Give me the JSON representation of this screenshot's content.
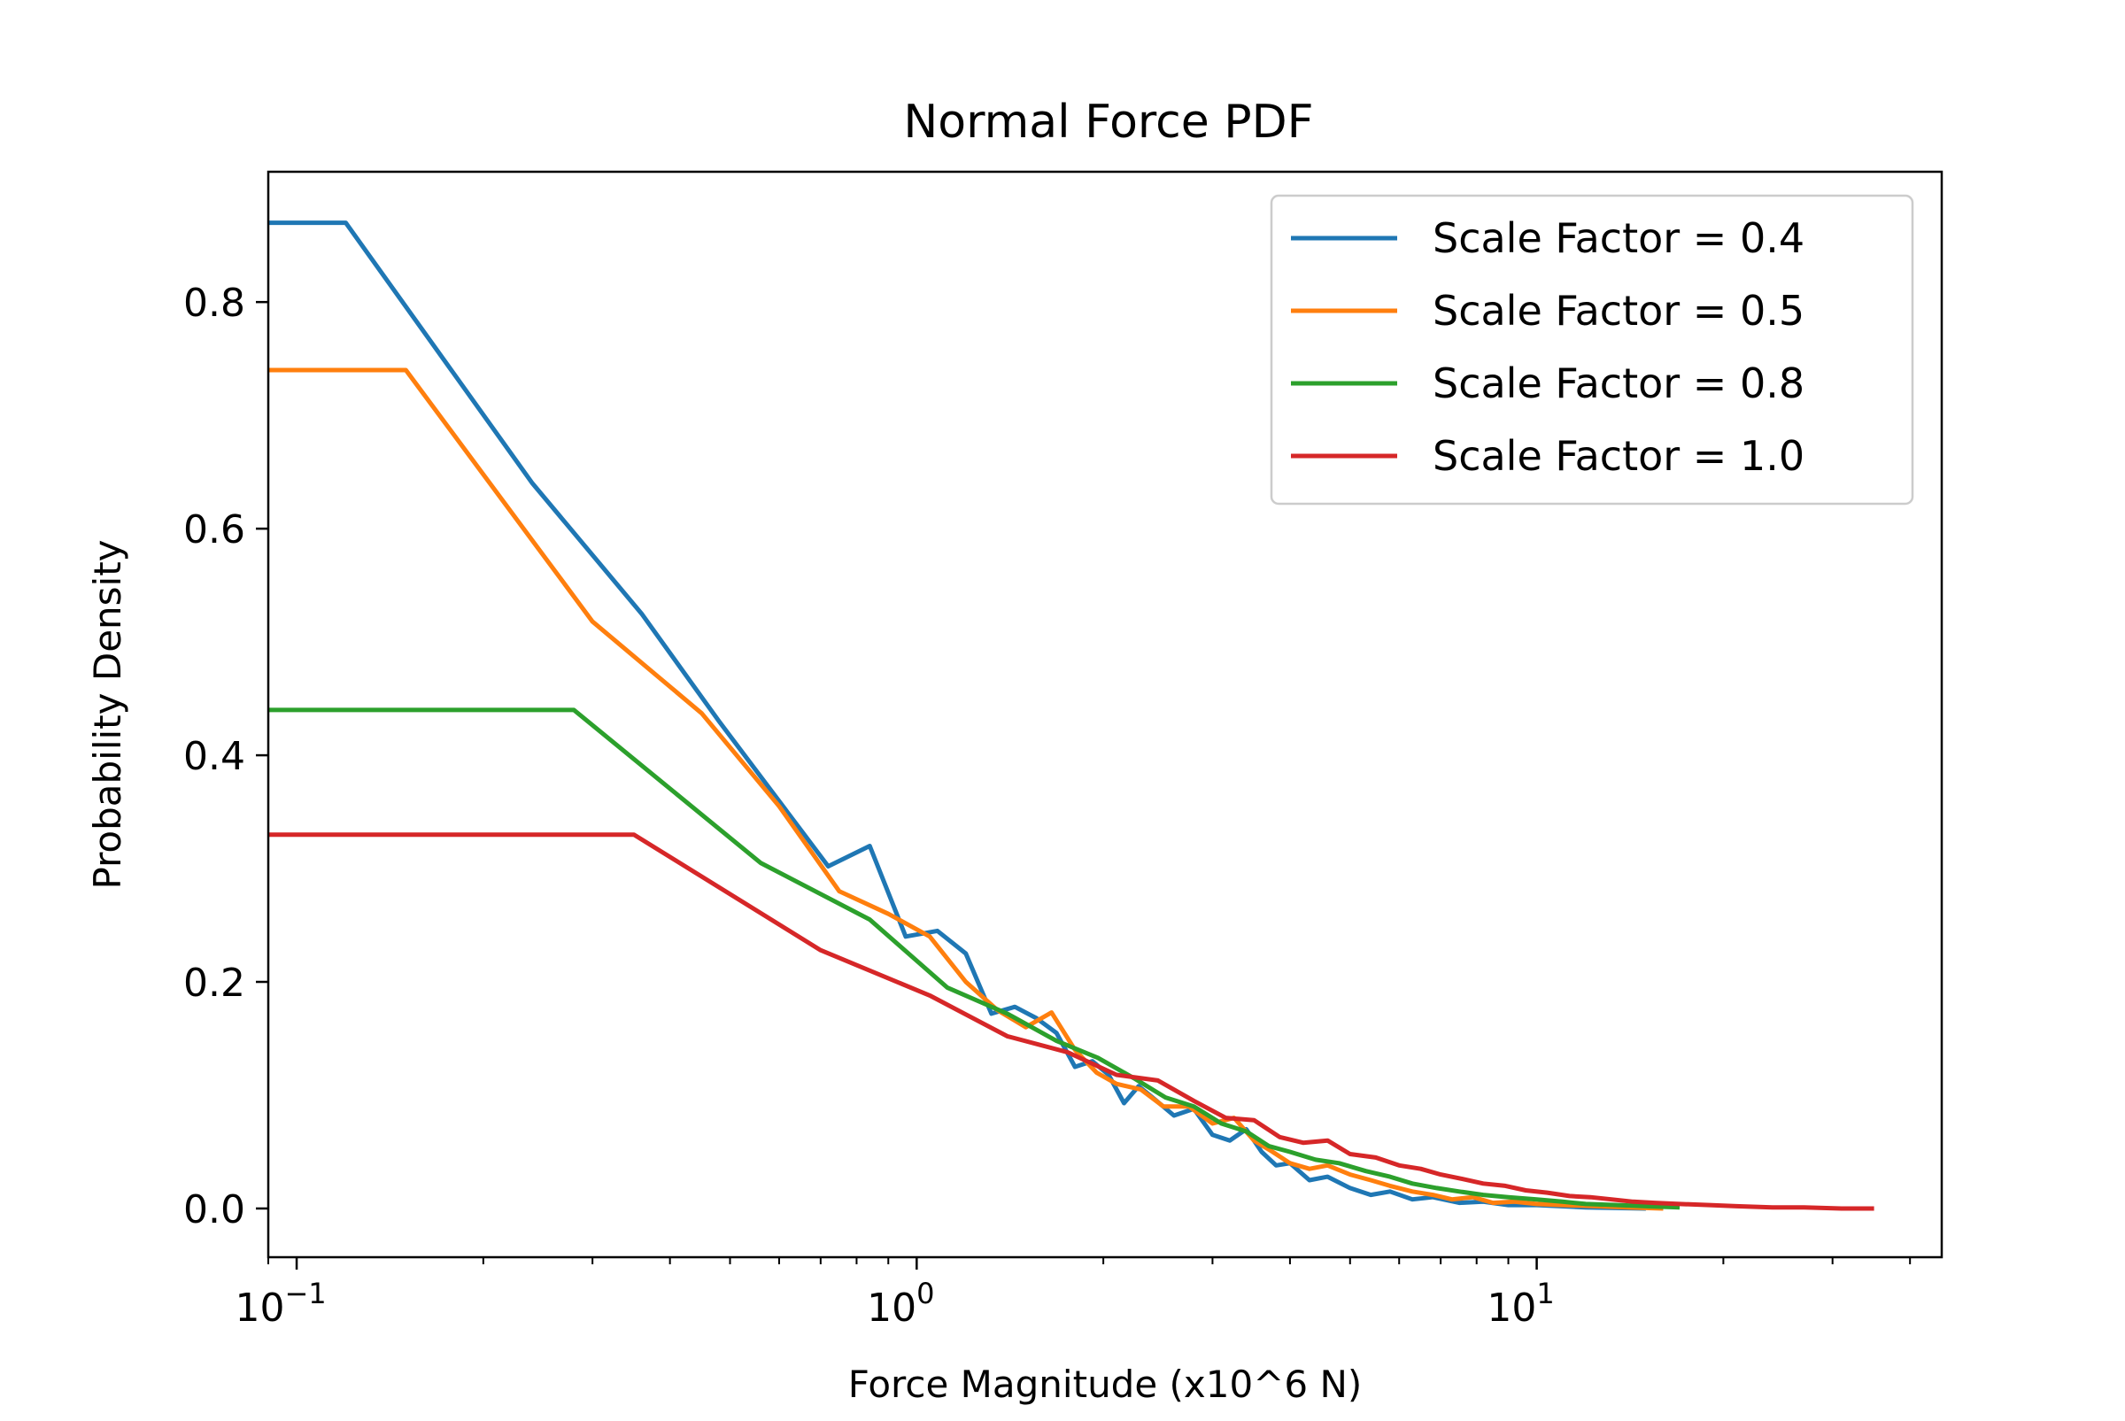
{
  "chart_data": {
    "type": "line",
    "title": "Normal Force PDF",
    "xlabel": "Force Magnitude (x10^6 N)",
    "ylabel": "Probability Density",
    "x_scale": "log",
    "xlim": [
      0.09,
      45
    ],
    "ylim": [
      -0.043,
      0.915
    ],
    "x_ticks": [
      {
        "value": 0.1,
        "base": "10",
        "exp": "−1"
      },
      {
        "value": 1,
        "base": "10",
        "exp": "0"
      },
      {
        "value": 10,
        "base": "10",
        "exp": "1"
      }
    ],
    "y_ticks": [
      {
        "value": 0.0,
        "label": "0.0"
      },
      {
        "value": 0.2,
        "label": "0.2"
      },
      {
        "value": 0.4,
        "label": "0.4"
      },
      {
        "value": 0.6,
        "label": "0.6"
      },
      {
        "value": 0.8,
        "label": "0.8"
      }
    ],
    "grid": false,
    "legend_position": "top-right",
    "series": [
      {
        "name": "Scale Factor = 0.4",
        "color": "#1f77b4",
        "x": [
          0.09,
          0.12,
          0.24,
          0.36,
          0.48,
          0.72,
          0.84,
          0.96,
          1.08,
          1.2,
          1.32,
          1.44,
          1.56,
          1.68,
          1.8,
          1.92,
          2.04,
          2.16,
          2.28,
          2.4,
          2.6,
          2.8,
          3.0,
          3.2,
          3.4,
          3.6,
          3.8,
          4.0,
          4.3,
          4.6,
          5.0,
          5.4,
          5.8,
          6.3,
          6.8,
          7.5,
          8.2,
          9.0,
          10.0,
          12.0,
          15.0
        ],
        "y": [
          0.87,
          0.87,
          0.64,
          0.525,
          0.43,
          0.302,
          0.32,
          0.24,
          0.245,
          0.225,
          0.172,
          0.178,
          0.168,
          0.155,
          0.125,
          0.13,
          0.118,
          0.093,
          0.108,
          0.098,
          0.082,
          0.088,
          0.065,
          0.06,
          0.07,
          0.05,
          0.038,
          0.04,
          0.025,
          0.028,
          0.018,
          0.012,
          0.015,
          0.008,
          0.01,
          0.005,
          0.006,
          0.003,
          0.003,
          0.001,
          0.0
        ]
      },
      {
        "name": "Scale Factor = 0.5",
        "color": "#ff7f0e",
        "x": [
          0.09,
          0.15,
          0.3,
          0.45,
          0.6,
          0.75,
          0.9,
          1.05,
          1.2,
          1.35,
          1.5,
          1.65,
          1.8,
          1.95,
          2.1,
          2.3,
          2.5,
          2.75,
          3.0,
          3.25,
          3.5,
          3.75,
          4.0,
          4.3,
          4.6,
          5.0,
          5.4,
          5.8,
          6.3,
          6.8,
          7.3,
          7.9,
          8.5,
          9.2,
          10.0,
          11.0,
          12.5,
          14.0,
          16.0
        ],
        "y": [
          0.74,
          0.74,
          0.518,
          0.437,
          0.355,
          0.28,
          0.26,
          0.24,
          0.2,
          0.175,
          0.16,
          0.173,
          0.14,
          0.12,
          0.11,
          0.105,
          0.09,
          0.09,
          0.075,
          0.08,
          0.06,
          0.05,
          0.04,
          0.035,
          0.038,
          0.03,
          0.025,
          0.02,
          0.015,
          0.012,
          0.008,
          0.01,
          0.005,
          0.006,
          0.004,
          0.003,
          0.002,
          0.001,
          0.0
        ]
      },
      {
        "name": "Scale Factor = 0.8",
        "color": "#2ca02c",
        "x": [
          0.09,
          0.28,
          0.56,
          0.84,
          1.12,
          1.4,
          1.68,
          1.96,
          2.24,
          2.52,
          2.8,
          3.1,
          3.4,
          3.7,
          4.0,
          4.4,
          4.8,
          5.3,
          5.8,
          6.3,
          6.9,
          7.5,
          8.2,
          9.0,
          10.0,
          11.0,
          12.0,
          13.5,
          15.0,
          17.0
        ],
        "y": [
          0.44,
          0.44,
          0.305,
          0.255,
          0.195,
          0.172,
          0.148,
          0.133,
          0.115,
          0.098,
          0.09,
          0.075,
          0.068,
          0.055,
          0.05,
          0.043,
          0.04,
          0.033,
          0.028,
          0.022,
          0.018,
          0.015,
          0.012,
          0.01,
          0.008,
          0.006,
          0.004,
          0.003,
          0.002,
          0.001
        ]
      },
      {
        "name": "Scale Factor = 1.0",
        "color": "#d62728",
        "x": [
          0.09,
          0.35,
          0.7,
          1.05,
          1.4,
          1.75,
          2.1,
          2.45,
          2.8,
          3.15,
          3.5,
          3.85,
          4.2,
          4.6,
          5.0,
          5.5,
          6.0,
          6.5,
          7.0,
          7.6,
          8.2,
          8.9,
          9.6,
          10.4,
          11.3,
          12.2,
          13.2,
          14.3,
          15.5,
          17.0,
          19.0,
          21.0,
          24.0,
          27.0,
          31.0,
          35.0
        ],
        "y": [
          0.33,
          0.33,
          0.228,
          0.188,
          0.152,
          0.138,
          0.118,
          0.113,
          0.095,
          0.08,
          0.078,
          0.063,
          0.058,
          0.06,
          0.048,
          0.045,
          0.038,
          0.035,
          0.03,
          0.026,
          0.022,
          0.02,
          0.016,
          0.014,
          0.011,
          0.01,
          0.008,
          0.006,
          0.005,
          0.004,
          0.003,
          0.002,
          0.001,
          0.001,
          0.0,
          0.0
        ]
      }
    ]
  }
}
